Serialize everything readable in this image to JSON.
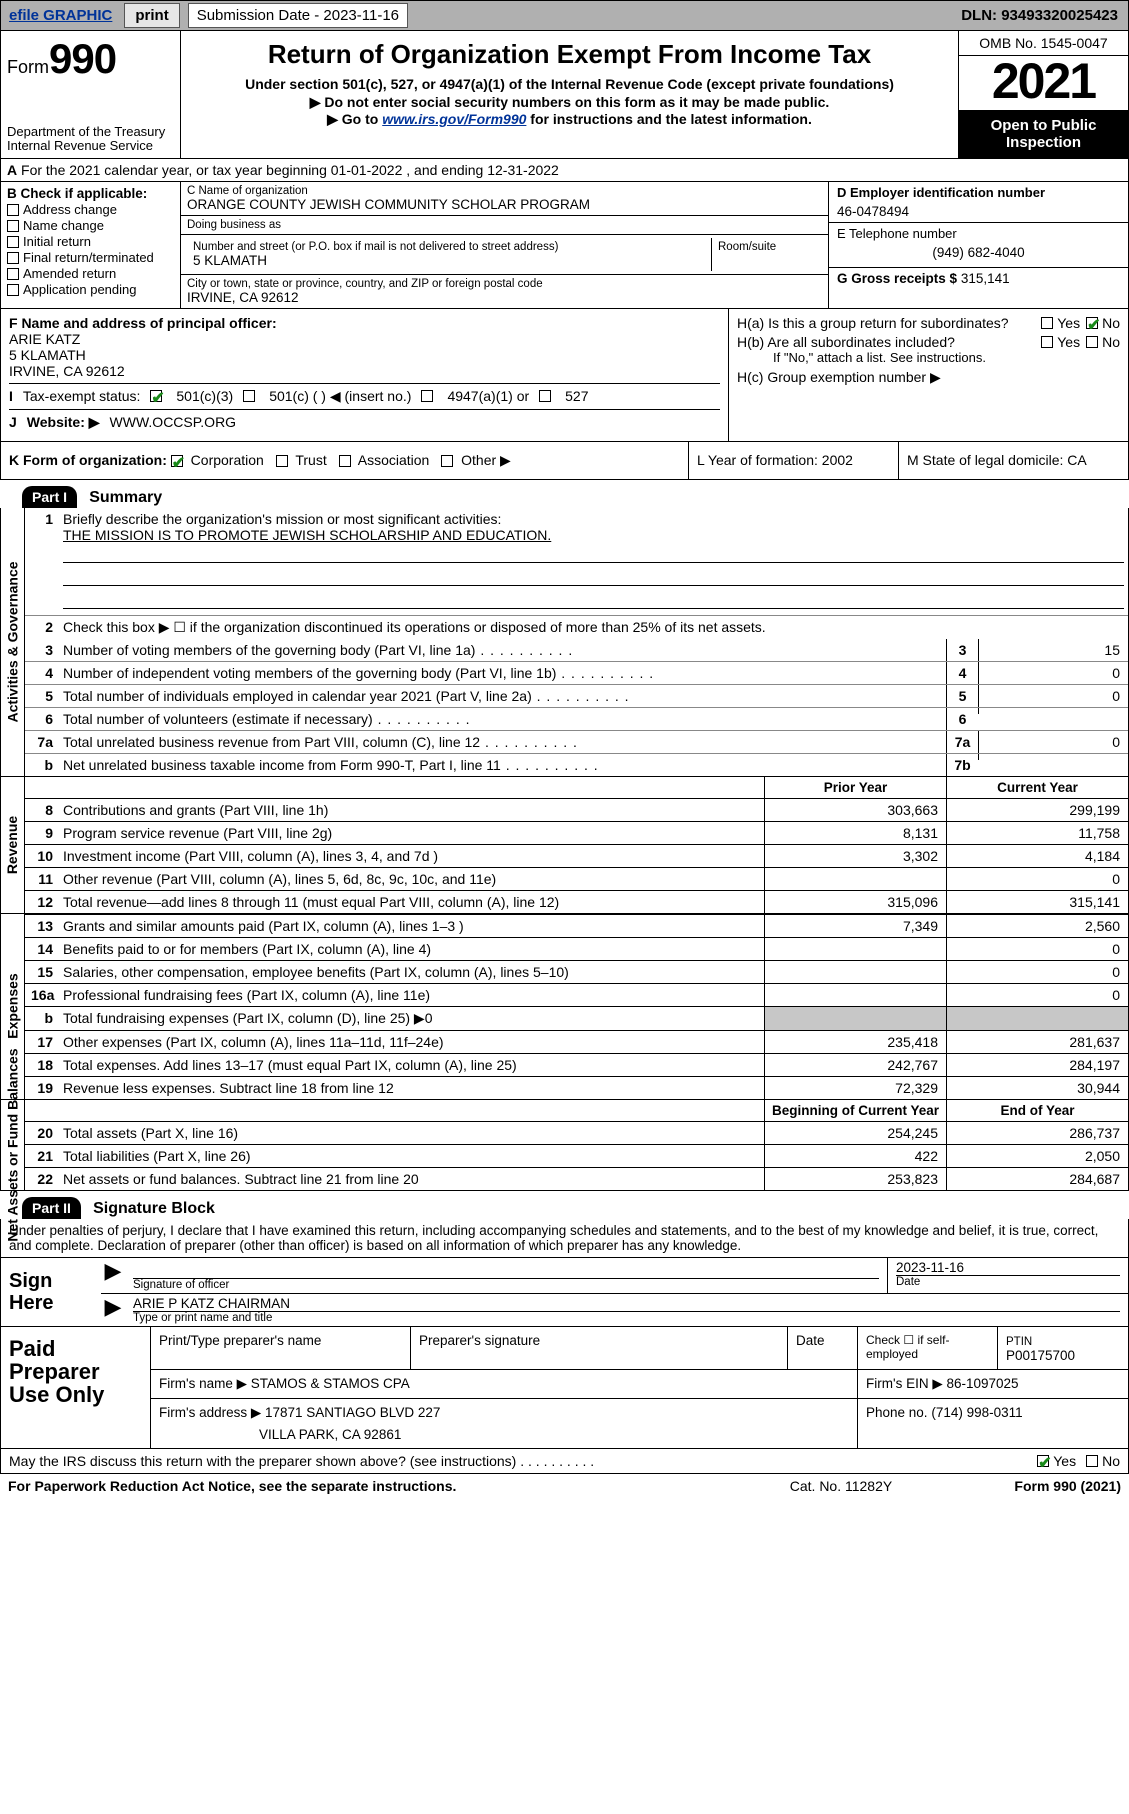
{
  "topbar": {
    "efile": "efile GRAPHIC",
    "print": "print",
    "subm_label": "Submission Date - 2023-11-16",
    "dln": "DLN: 93493320025423"
  },
  "header": {
    "form_label": "Form",
    "form_num": "990",
    "dept": "Department of the Treasury\nInternal Revenue Service",
    "title": "Return of Organization Exempt From Income Tax",
    "sub1": "Under section 501(c), 527, or 4947(a)(1) of the Internal Revenue Code (except private foundations)",
    "sub2": "▶ Do not enter social security numbers on this form as it may be made public.",
    "sub3_pre": "▶ Go to ",
    "sub3_link": "www.irs.gov/Form990",
    "sub3_post": " for instructions and the latest information.",
    "omb": "OMB No. 1545-0047",
    "year": "2021",
    "open": "Open to Public Inspection"
  },
  "row_a": "For the 2021 calendar year, or tax year beginning 01-01-2022  , and ending 12-31-2022",
  "box_b": {
    "title": "B Check if applicable:",
    "opts": [
      "Address change",
      "Name change",
      "Initial return",
      "Final return/terminated",
      "Amended return",
      "Application pending"
    ]
  },
  "box_c": {
    "name_cap": "C Name of organization",
    "name": "ORANGE COUNTY JEWISH COMMUNITY SCHOLAR PROGRAM",
    "dba_cap": "Doing business as",
    "addr_cap": "Number and street (or P.O. box if mail is not delivered to street address)",
    "addr": "5 KLAMATH",
    "room_cap": "Room/suite",
    "city_cap": "City or town, state or province, country, and ZIP or foreign postal code",
    "city": "IRVINE, CA  92612"
  },
  "box_d": {
    "ein_cap": "D Employer identification number",
    "ein": "46-0478494",
    "tel_cap": "E Telephone number",
    "tel": "(949) 682-4040",
    "gross_cap": "G Gross receipts $",
    "gross": "315,141"
  },
  "box_f": {
    "cap": "F Name and address of principal officer:",
    "name": "ARIE KATZ",
    "addr1": "5 KLAMATH",
    "addr2": "IRVINE, CA  92612"
  },
  "box_h": {
    "a": "H(a)  Is this a group return for subordinates?",
    "b": "H(b)  Are all subordinates included?",
    "note": "If \"No,\" attach a list. See instructions.",
    "c": "H(c)  Group exemption number ▶",
    "yes": "Yes",
    "no": "No"
  },
  "row_i": {
    "label": "Tax-exempt status:",
    "c3": "501(c)(3)",
    "c": "501(c) (  ) ◀ (insert no.)",
    "a1": "4947(a)(1) or",
    "s527": "527"
  },
  "row_j": {
    "label": "Website: ▶",
    "val": "WWW.OCCSP.ORG"
  },
  "row_k": {
    "label": "K Form of organization:",
    "corp": "Corporation",
    "trust": "Trust",
    "assoc": "Association",
    "other": "Other ▶",
    "l": "L Year of formation: 2002",
    "m": "M State of legal domicile: CA"
  },
  "part1": {
    "hdr": "Part I",
    "title": "Summary",
    "tabs": {
      "gov": "Activities & Governance",
      "rev": "Revenue",
      "exp": "Expenses",
      "net": "Net Assets or Fund Balances"
    },
    "l1a": "Briefly describe the organization's mission or most significant activities:",
    "l1b": "THE MISSION IS TO PROMOTE JEWISH SCHOLARSHIP AND EDUCATION.",
    "l2": "Check this box ▶ ☐  if the organization discontinued its operations or disposed of more than 25% of its net assets.",
    "rows_gov": [
      {
        "n": "3",
        "t": "Number of voting members of the governing body (Part VI, line 1a)",
        "box": "3",
        "v": "15"
      },
      {
        "n": "4",
        "t": "Number of independent voting members of the governing body (Part VI, line 1b)",
        "box": "4",
        "v": "0"
      },
      {
        "n": "5",
        "t": "Total number of individuals employed in calendar year 2021 (Part V, line 2a)",
        "box": "5",
        "v": "0"
      },
      {
        "n": "6",
        "t": "Total number of volunteers (estimate if necessary)",
        "box": "6",
        "v": ""
      },
      {
        "n": "7a",
        "t": "Total unrelated business revenue from Part VIII, column (C), line 12",
        "box": "7a",
        "v": "0"
      },
      {
        "n": "b",
        "t": "Net unrelated business taxable income from Form 990-T, Part I, line 11",
        "box": "7b",
        "v": ""
      }
    ],
    "col_hdr": {
      "prior": "Prior Year",
      "curr": "Current Year",
      "bcy": "Beginning of Current Year",
      "eoy": "End of Year"
    },
    "rows_rev": [
      {
        "n": "8",
        "t": "Contributions and grants (Part VIII, line 1h)",
        "p": "303,663",
        "c": "299,199"
      },
      {
        "n": "9",
        "t": "Program service revenue (Part VIII, line 2g)",
        "p": "8,131",
        "c": "11,758"
      },
      {
        "n": "10",
        "t": "Investment income (Part VIII, column (A), lines 3, 4, and 7d )",
        "p": "3,302",
        "c": "4,184"
      },
      {
        "n": "11",
        "t": "Other revenue (Part VIII, column (A), lines 5, 6d, 8c, 9c, 10c, and 11e)",
        "p": "",
        "c": "0"
      },
      {
        "n": "12",
        "t": "Total revenue—add lines 8 through 11 (must equal Part VIII, column (A), line 12)",
        "p": "315,096",
        "c": "315,141"
      }
    ],
    "rows_exp": [
      {
        "n": "13",
        "t": "Grants and similar amounts paid (Part IX, column (A), lines 1–3 )",
        "p": "7,349",
        "c": "2,560"
      },
      {
        "n": "14",
        "t": "Benefits paid to or for members (Part IX, column (A), line 4)",
        "p": "",
        "c": "0"
      },
      {
        "n": "15",
        "t": "Salaries, other compensation, employee benefits (Part IX, column (A), lines 5–10)",
        "p": "",
        "c": "0"
      },
      {
        "n": "16a",
        "t": "Professional fundraising fees (Part IX, column (A), line 11e)",
        "p": "",
        "c": "0"
      },
      {
        "n": "b",
        "t": "Total fundraising expenses (Part IX, column (D), line 25) ▶0",
        "p": "shade",
        "c": "shade"
      },
      {
        "n": "17",
        "t": "Other expenses (Part IX, column (A), lines 11a–11d, 11f–24e)",
        "p": "235,418",
        "c": "281,637"
      },
      {
        "n": "18",
        "t": "Total expenses. Add lines 13–17 (must equal Part IX, column (A), line 25)",
        "p": "242,767",
        "c": "284,197"
      },
      {
        "n": "19",
        "t": "Revenue less expenses. Subtract line 18 from line 12",
        "p": "72,329",
        "c": "30,944"
      }
    ],
    "rows_net": [
      {
        "n": "20",
        "t": "Total assets (Part X, line 16)",
        "p": "254,245",
        "c": "286,737"
      },
      {
        "n": "21",
        "t": "Total liabilities (Part X, line 26)",
        "p": "422",
        "c": "2,050"
      },
      {
        "n": "22",
        "t": "Net assets or fund balances. Subtract line 21 from line 20",
        "p": "253,823",
        "c": "284,687"
      }
    ]
  },
  "part2": {
    "hdr": "Part II",
    "title": "Signature Block",
    "decl": "Under penalties of perjury, I declare that I have examined this return, including accompanying schedules and statements, and to the best of my knowledge and belief, it is true, correct, and complete. Declaration of preparer (other than officer) is based on all information of which preparer has any knowledge.",
    "sign_here": "Sign Here",
    "sig_officer": "Signature of officer",
    "sig_date_lbl": "Date",
    "sig_date": "2023-11-16",
    "sig_name": "ARIE P KATZ  CHAIRMAN",
    "sig_name_cap": "Type or print name and title",
    "paid": "Paid Preparer Use Only",
    "prep_name_cap": "Print/Type preparer's name",
    "prep_sig_cap": "Preparer's signature",
    "prep_date_cap": "Date",
    "prep_self": "Check ☐ if self-employed",
    "ptin_cap": "PTIN",
    "ptin": "P00175700",
    "firm_name_cap": "Firm's name   ▶",
    "firm_name": "STAMOS & STAMOS CPA",
    "firm_ein_cap": "Firm's EIN ▶",
    "firm_ein": "86-1097025",
    "firm_addr_cap": "Firm's address ▶",
    "firm_addr1": "17871 SANTIAGO BLVD 227",
    "firm_addr2": "VILLA PARK, CA  92861",
    "firm_phone_cap": "Phone no.",
    "firm_phone": "(714) 998-0311",
    "discuss": "May the IRS discuss this return with the preparer shown above? (see instructions)",
    "yes": "Yes",
    "no": "No"
  },
  "footer": {
    "pra": "For Paperwork Reduction Act Notice, see the separate instructions.",
    "cat": "Cat. No. 11282Y",
    "form": "Form 990 (2021)"
  }
}
